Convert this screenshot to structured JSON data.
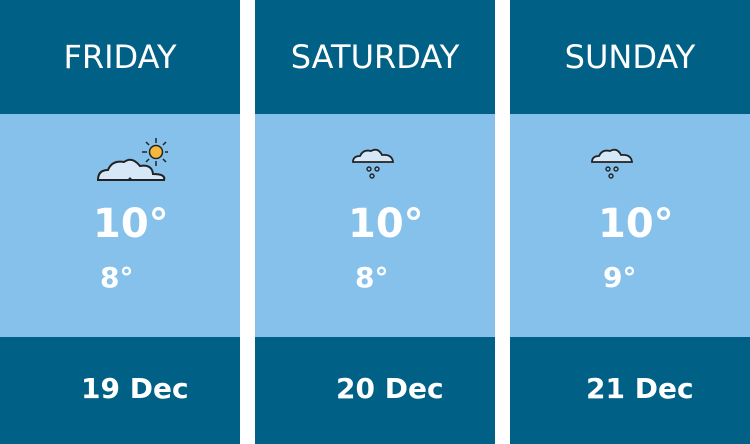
{
  "days": [
    {
      "name": "FRIDAY",
      "icon": "partly-cloudy-icon",
      "high": "10°",
      "low": "8°",
      "date": "19 Dec"
    },
    {
      "name": "SATURDAY",
      "icon": "cloud-rain-icon",
      "high": "10°",
      "low": "8°",
      "date": "20 Dec"
    },
    {
      "name": "SUNDAY",
      "icon": "cloud-rain-icon",
      "high": "10°",
      "low": "9°",
      "date": "21 Dec"
    }
  ],
  "colors": {
    "dark": "#006085",
    "light": "#86c1ec"
  }
}
